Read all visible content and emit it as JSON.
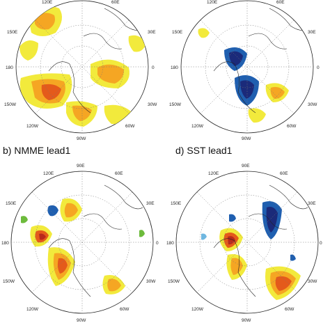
{
  "panels": [
    {
      "id": "a",
      "title": "",
      "lon_labels": [
        "120E",
        "60E",
        "150E",
        "30E",
        "180",
        "0",
        "150W",
        "30W",
        "120W",
        "60W",
        "90W"
      ]
    },
    {
      "id": "c",
      "title": "",
      "lon_labels": [
        "120E",
        "60E",
        "150E",
        "30E",
        "180",
        "0",
        "150W",
        "30W",
        "120W",
        "60W",
        "90W"
      ]
    },
    {
      "id": "b",
      "title": "b) NMME lead1",
      "lon_labels": [
        "120E",
        "90E",
        "60E",
        "150E",
        "30E",
        "180",
        "0",
        "150W",
        "30W",
        "120W",
        "60W",
        "90W"
      ]
    },
    {
      "id": "d",
      "title": "d) SST lead1",
      "lon_labels": [
        "120E",
        "90E",
        "60E",
        "150E",
        "30E",
        "180",
        "0",
        "150W",
        "30W",
        "120W",
        "60W",
        "90W"
      ]
    }
  ],
  "colors": {
    "positive_weak": "#f2ea3c",
    "positive_mid": "#f5a623",
    "positive_strong": "#e45a1b",
    "positive_max": "#b8291c",
    "negative_weak": "#6fb7e0",
    "negative_mid": "#1f5fb0",
    "negative_max": "#1b2a7a",
    "green_contour": "#6dbb3c",
    "coast": "#222222",
    "grid": "#777777"
  }
}
